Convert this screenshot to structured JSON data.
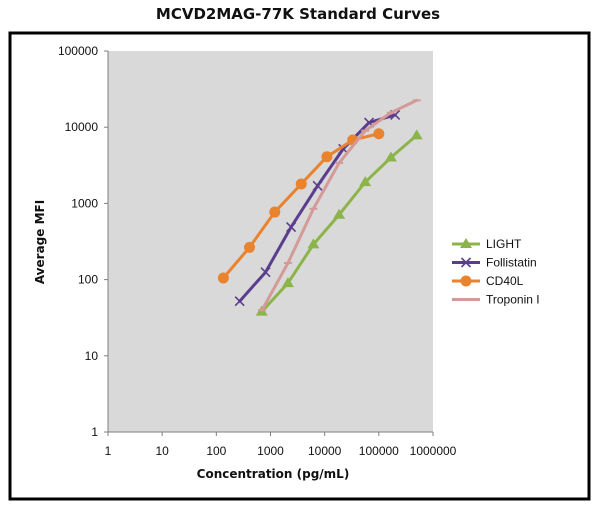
{
  "chart_data": {
    "type": "line",
    "title": "MCVD2MAG-77K Standard Curves",
    "xlabel": "Concentration (pg/mL)",
    "ylabel": "Average MFI",
    "xscale": "log",
    "yscale": "log",
    "xlim": [
      1,
      1000000
    ],
    "ylim": [
      1,
      100000
    ],
    "x_ticks": [
      "1",
      "10",
      "100",
      "1000",
      "10000",
      "100000",
      "1000000"
    ],
    "y_ticks": [
      "1",
      "10",
      "100",
      "1000",
      "10000",
      "100000"
    ],
    "grid": false,
    "legend_position": "right",
    "plot_background": "#d9d9d9",
    "series": [
      {
        "name": "LIGHT",
        "color": "#8db44a",
        "marker": "triangle",
        "x": [
          690,
          2100,
          6200,
          18500,
          56000,
          167000,
          500000
        ],
        "y": [
          38,
          90,
          290,
          710,
          1900,
          4000,
          7800
        ]
      },
      {
        "name": "Follistatin",
        "color": "#5b3d8e",
        "marker": "x",
        "x": [
          270,
          810,
          2400,
          7400,
          22000,
          66000,
          200000
        ],
        "y": [
          52,
          125,
          490,
          1700,
          5200,
          11500,
          14500
        ]
      },
      {
        "name": "CD40L",
        "color": "#e9832d",
        "marker": "circle",
        "x": [
          135,
          410,
          1200,
          3700,
          11000,
          33000,
          100000
        ],
        "y": [
          105,
          265,
          770,
          1800,
          4100,
          6800,
          8200
        ]
      },
      {
        "name": "Troponin I",
        "color": "#d39a98",
        "marker": "dash",
        "x": [
          700,
          2100,
          6200,
          18500,
          56000,
          167000,
          500000
        ],
        "y": [
          40,
          165,
          850,
          3400,
          9000,
          15500,
          22500
        ]
      }
    ]
  }
}
